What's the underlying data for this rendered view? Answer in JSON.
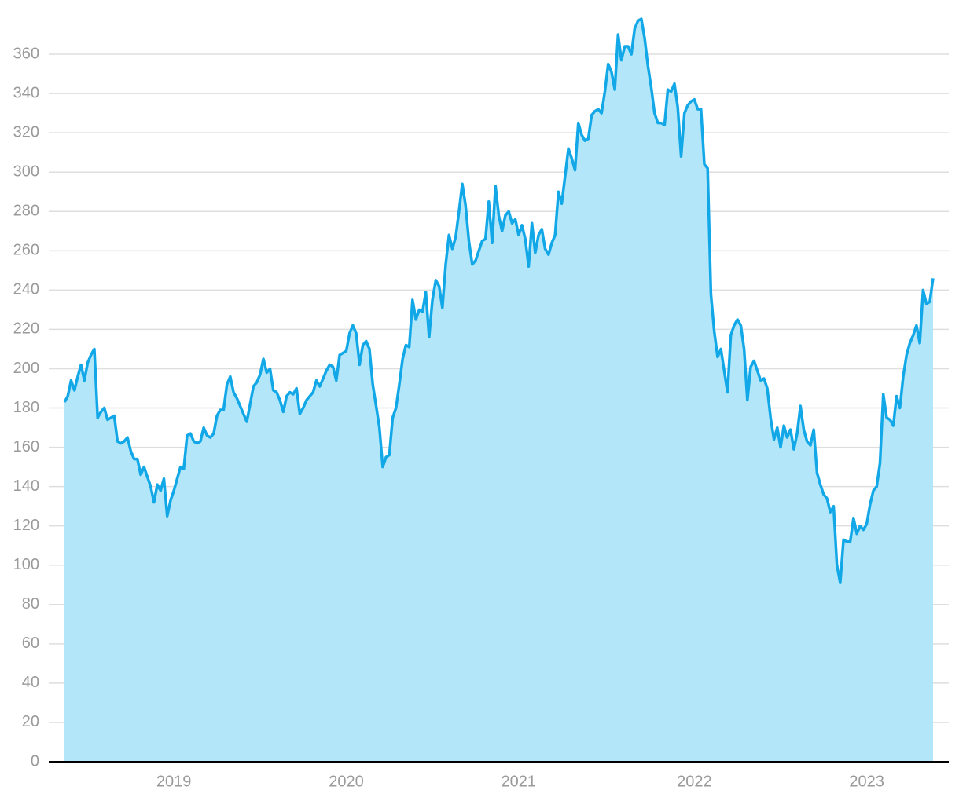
{
  "chart_data": {
    "type": "area",
    "categories": [
      null,
      null,
      null,
      null,
      null,
      null,
      null,
      null,
      null,
      null,
      null,
      null,
      null,
      null,
      null,
      null,
      null,
      null,
      null,
      null,
      null,
      null,
      null,
      null,
      null,
      null,
      null,
      null,
      null,
      null,
      null,
      null,
      null,
      "2019",
      null,
      null,
      null,
      null,
      null,
      null,
      null,
      null,
      null,
      null,
      null,
      null,
      null,
      null,
      null,
      null,
      null,
      null,
      null,
      null,
      null,
      null,
      null,
      null,
      null,
      null,
      null,
      null,
      null,
      null,
      null,
      null,
      null,
      null,
      null,
      null,
      null,
      null,
      null,
      null,
      null,
      null,
      null,
      null,
      null,
      null,
      null,
      null,
      null,
      null,
      null,
      "2020",
      null,
      null,
      null,
      null,
      null,
      null,
      null,
      null,
      null,
      null,
      null,
      null,
      null,
      null,
      null,
      null,
      null,
      null,
      null,
      null,
      null,
      null,
      null,
      null,
      null,
      null,
      null,
      null,
      null,
      null,
      null,
      null,
      null,
      null,
      null,
      null,
      null,
      null,
      null,
      null,
      null,
      null,
      null,
      null,
      null,
      null,
      null,
      null,
      null,
      null,
      null,
      "2021",
      null,
      null,
      null,
      null,
      null,
      null,
      null,
      null,
      null,
      null,
      null,
      null,
      null,
      null,
      null,
      null,
      null,
      null,
      null,
      null,
      null,
      null,
      null,
      null,
      null,
      null,
      null,
      null,
      null,
      null,
      null,
      null,
      null,
      null,
      null,
      null,
      null,
      null,
      null,
      null,
      null,
      null,
      null,
      null,
      null,
      null,
      null,
      null,
      null,
      null,
      null,
      null,
      "2022",
      null,
      null,
      null,
      null,
      null,
      null,
      null,
      null,
      null,
      null,
      null,
      null,
      null,
      null,
      null,
      null,
      null,
      null,
      null,
      null,
      null,
      null,
      null,
      null,
      null,
      null,
      null,
      null,
      null,
      null,
      null,
      null,
      null,
      null,
      null,
      null,
      null,
      null,
      null,
      null,
      null,
      null,
      null,
      null,
      null,
      null,
      null,
      null,
      null,
      null,
      null,
      "2023",
      null,
      null,
      null,
      null,
      null,
      null,
      null,
      null,
      null,
      null,
      null,
      null,
      null,
      null,
      null,
      null,
      null,
      null,
      null,
      null
    ],
    "values": [
      183,
      186,
      194,
      189,
      196,
      202,
      194,
      203,
      207,
      210,
      175,
      178,
      180,
      174,
      175,
      176,
      163,
      162,
      163,
      165,
      158,
      154,
      154,
      146,
      150,
      145,
      140,
      132,
      141,
      138,
      144,
      125,
      133,
      138,
      144,
      150,
      149,
      166,
      167,
      163,
      162,
      163,
      170,
      166,
      165,
      167,
      176,
      179,
      179,
      192,
      196,
      188,
      185,
      181,
      177,
      173,
      182,
      191,
      193,
      197,
      205,
      198,
      200,
      189,
      188,
      184,
      178,
      186,
      188,
      187,
      190,
      177,
      180,
      184,
      186,
      188,
      194,
      191,
      195,
      199,
      202,
      201,
      194,
      207,
      208,
      209,
      218,
      222,
      218,
      202,
      212,
      214,
      210,
      192,
      181,
      170,
      150,
      155,
      156,
      175,
      180,
      192,
      205,
      212,
      211,
      235,
      225,
      230,
      229,
      239,
      216,
      235,
      245,
      242,
      231,
      253,
      268,
      261,
      267,
      280,
      294,
      283,
      265,
      253,
      255,
      260,
      265,
      266,
      285,
      264,
      293,
      278,
      270,
      278,
      280,
      274,
      276,
      268,
      273,
      266,
      252,
      274,
      259,
      268,
      271,
      261,
      258,
      264,
      268,
      290,
      284,
      298,
      312,
      307,
      301,
      325,
      319,
      316,
      317,
      329,
      331,
      332,
      330,
      341,
      355,
      351,
      342,
      370,
      357,
      364,
      364,
      360,
      373,
      377,
      378,
      368,
      354,
      343,
      330,
      325,
      325,
      324,
      342,
      341,
      345,
      333,
      308,
      330,
      334,
      336,
      337,
      332,
      332,
      304,
      302,
      238,
      219,
      206,
      210,
      199,
      188,
      217,
      222,
      225,
      222,
      210,
      184,
      201,
      204,
      199,
      194,
      195,
      190,
      175,
      164,
      170,
      160,
      171,
      165,
      169,
      159,
      167,
      181,
      169,
      163,
      161,
      169,
      147,
      141,
      136,
      134,
      127,
      130,
      100,
      91,
      113,
      112,
      112,
      124,
      116,
      120,
      118,
      121,
      131,
      138,
      140,
      152,
      187,
      175,
      174,
      171,
      186,
      180,
      196,
      207,
      213,
      217,
      222,
      213,
      240,
      233,
      234,
      246
    ],
    "color": "#12a8e8",
    "fill": "#b3e6f8",
    "ylim": [
      0,
      380
    ],
    "yticks": [
      0,
      20,
      40,
      60,
      80,
      100,
      120,
      140,
      160,
      180,
      200,
      220,
      240,
      260,
      280,
      300,
      320,
      340,
      360
    ],
    "grid": true
  }
}
